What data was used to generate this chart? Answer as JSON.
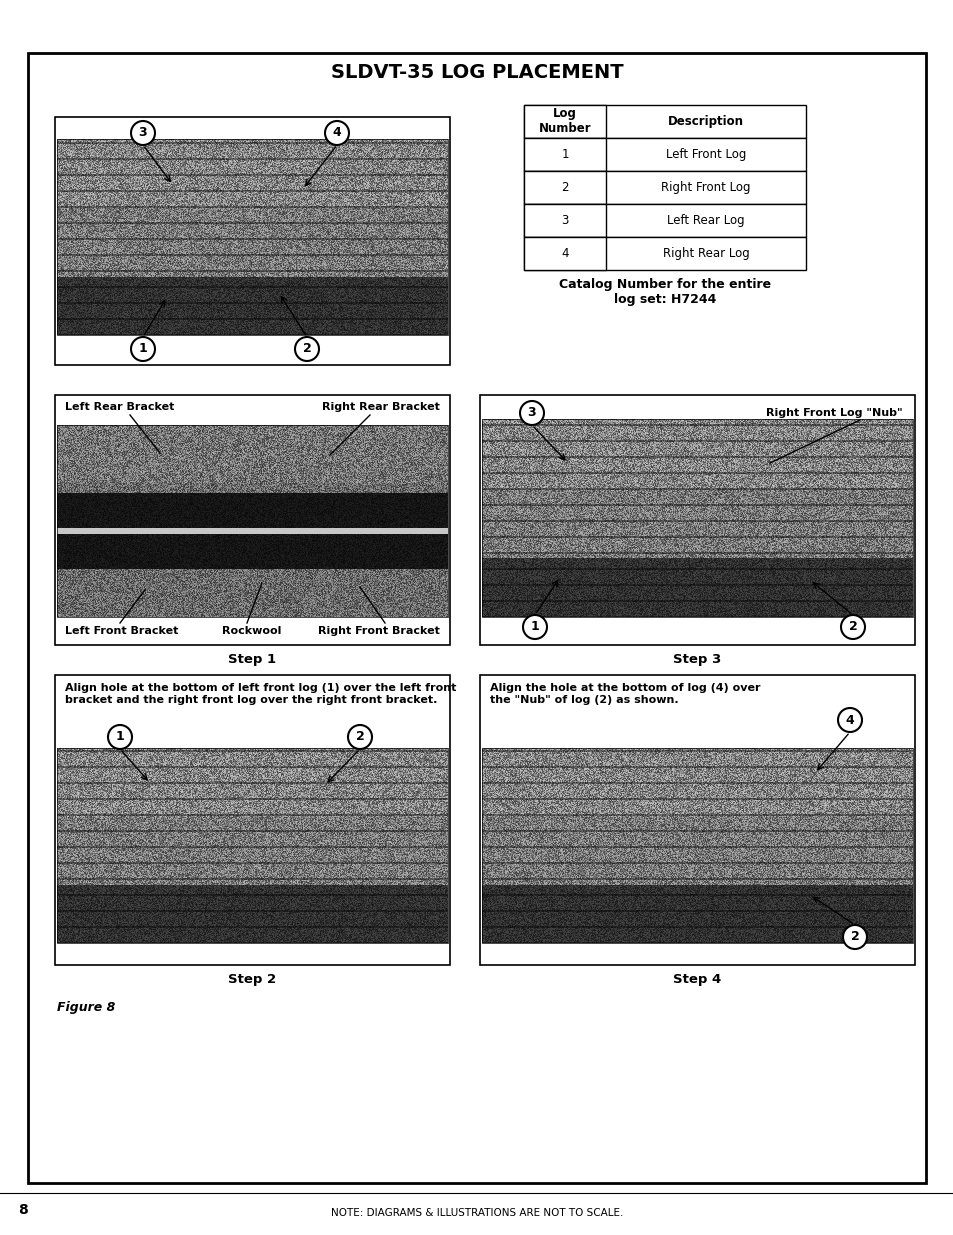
{
  "title": "SLDVT-35 LOG PLACEMENT",
  "page_num": "8",
  "footer_note": "NOTE: DIAGRAMS & ILLUSTRATIONS ARE NOT TO SCALE.",
  "figure_label": "Figure 8",
  "table_col1_header": "Log\nNumber",
  "table_col2_header": "Description",
  "table_rows": [
    [
      "1",
      "Left Front Log"
    ],
    [
      "2",
      "Right Front Log"
    ],
    [
      "3",
      "Left Rear Log"
    ],
    [
      "4",
      "Right Rear Log"
    ]
  ],
  "catalog_text": "Catalog Number for the entire\nlog set: H7244",
  "step1_label": "Step 1",
  "step2_label": "Step 2",
  "step3_label": "Step 3",
  "step4_label": "Step 4",
  "s1_top_left": "Left Rear Bracket",
  "s1_top_right": "Right Rear Bracket",
  "s1_bot_left": "Left Front Bracket",
  "s1_bot_mid": "Rockwool",
  "s1_bot_right": "Right Front Bracket",
  "s3_nub_label": "Right Front Log \"Nub\"",
  "s2_instruction": "Align hole at the bottom of left front log (1) over the left front\nbracket and the right front log over the right front bracket.",
  "s4_instruction": "Align the hole at the bottom of log (4) over\nthe \"Nub\" of log (2) as shown.",
  "bg_color": "#ffffff",
  "circle_fill": "#ffffff",
  "circle_edge": "#000000",
  "outer_lw": 2.0,
  "inner_lw": 1.2
}
